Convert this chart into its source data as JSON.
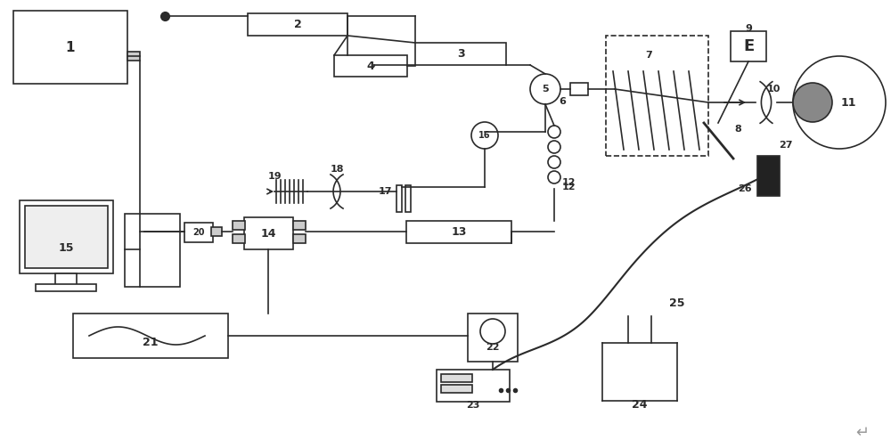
{
  "bg": "#ffffff",
  "lc": "#2a2a2a",
  "lw": 1.2,
  "fw": 10.0,
  "fh": 5.03,
  "dpi": 100
}
